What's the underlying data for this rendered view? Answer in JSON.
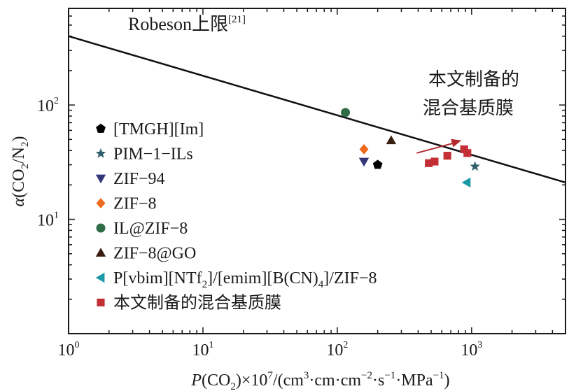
{
  "chart_data": {
    "type": "scatter",
    "title": "",
    "x_scale": "log",
    "y_scale": "log",
    "xlim": [
      1,
      5000
    ],
    "ylim": [
      1,
      700
    ],
    "x_ticks": [
      {
        "value": 1,
        "label": "10",
        "exp": "0"
      },
      {
        "value": 10,
        "label": "10",
        "exp": "1"
      },
      {
        "value": 100,
        "label": "10",
        "exp": "2"
      },
      {
        "value": 1000,
        "label": "10",
        "exp": "3"
      }
    ],
    "y_ticks": [
      {
        "value": 10,
        "label": "10",
        "exp": "1"
      },
      {
        "value": 100,
        "label": "10",
        "exp": "2"
      }
    ],
    "xlabel": {
      "p": "P",
      "a": "(CO",
      "a_sub": "2",
      "b": ")×10",
      "b_sup": "7",
      "c": "/(cm",
      "c_sup": "3",
      "d": "·cm·cm",
      "d_sup": "−2",
      "e": "·s",
      "e_sup": "−1",
      "f": "·MPa",
      "f_sup": "−1",
      "g": ")"
    },
    "ylabel": {
      "alpha": "α",
      "a": "(CO",
      "a_sub": "2",
      "b": "/N",
      "b_sub": "2",
      "c": ")"
    },
    "upper_bound": {
      "label": "Robeson上限",
      "ref": "[21]",
      "points": [
        [
          1,
          400
        ],
        [
          5000,
          21
        ]
      ]
    },
    "annotation": {
      "lines": [
        "本文制备的",
        "混合基质膜"
      ],
      "arrow_from": [
        390,
        38
      ],
      "arrow_to": [
        840,
        49
      ],
      "arrow_color": "#b22a2e"
    },
    "legend": [
      {
        "marker": "pentagon",
        "color": "#000000",
        "label": "[TMGH][Im]"
      },
      {
        "marker": "star",
        "color": "#2f5f6b",
        "label": "PIM−1−ILs"
      },
      {
        "marker": "triangle-down",
        "color": "#33377a",
        "label": "ZIF−94"
      },
      {
        "marker": "diamond",
        "color": "#ee6a1c",
        "label": "ZIF−8"
      },
      {
        "marker": "circle",
        "color": "#2e6b47",
        "label": "IL@ZIF−8"
      },
      {
        "marker": "triangle-up",
        "color": "#3a1e12",
        "label": "ZIF−8@GO"
      },
      {
        "marker": "triangle-left",
        "color": "#1a9aa7",
        "label_parts": [
          "P[vbim][NTf",
          "2",
          "]/[emim][B(CN)",
          "4",
          "]/ZIF−8"
        ]
      },
      {
        "marker": "square",
        "color": "#c42f36",
        "label": "本文制备的混合基质膜"
      }
    ],
    "series": [
      {
        "name": "[TMGH][Im]",
        "marker": "pentagon",
        "color": "#000000",
        "points": [
          [
            200,
            30
          ]
        ]
      },
      {
        "name": "PIM−1−ILs",
        "marker": "star",
        "color": "#2f5f6b",
        "points": [
          [
            1060,
            29
          ]
        ]
      },
      {
        "name": "ZIF−94",
        "marker": "triangle-down",
        "color": "#33377a",
        "points": [
          [
            158,
            32
          ]
        ]
      },
      {
        "name": "ZIF−8",
        "marker": "diamond",
        "color": "#ee6a1c",
        "points": [
          [
            158,
            41
          ]
        ]
      },
      {
        "name": "IL@ZIF−8",
        "marker": "circle",
        "color": "#2e6b47",
        "points": [
          [
            115,
            86
          ]
        ]
      },
      {
        "name": "ZIF−8@GO",
        "marker": "triangle-up",
        "color": "#3a1e12",
        "points": [
          [
            252,
            49
          ]
        ]
      },
      {
        "name": "P[vbim][NTf2]/[emim][B(CN)4]/ZIF−8",
        "marker": "triangle-left",
        "color": "#1a9aa7",
        "points": [
          [
            920,
            21
          ]
        ]
      },
      {
        "name": "本文制备的混合基质膜",
        "marker": "square",
        "color": "#c42f36",
        "points": [
          [
            480,
            31
          ],
          [
            530,
            32
          ],
          [
            660,
            36
          ],
          [
            880,
            41
          ],
          [
            930,
            38
          ]
        ]
      }
    ]
  }
}
